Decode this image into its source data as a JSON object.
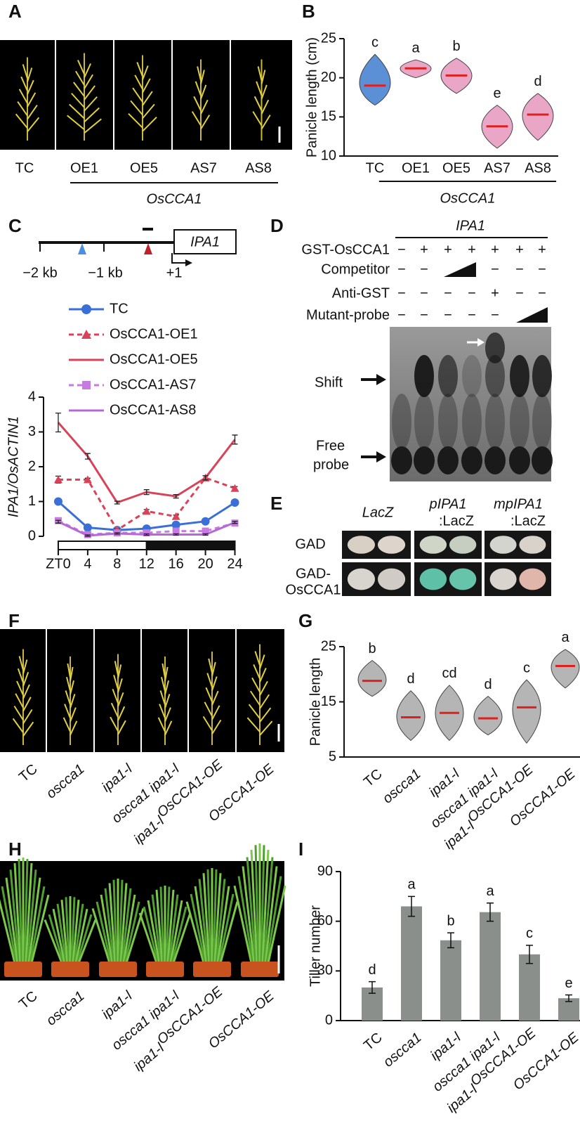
{
  "panel_labels": [
    "A",
    "B",
    "C",
    "D",
    "E",
    "F",
    "G",
    "H",
    "I"
  ],
  "panel_a": {
    "labels": [
      "TC",
      "OE1",
      "OE5",
      "AS7",
      "AS8"
    ],
    "group_label": "OsCCA1"
  },
  "panel_c_diagram": {
    "gene": "IPA1",
    "positions": [
      "−2 kb",
      "−1 kb",
      "+1"
    ]
  },
  "panel_d": {
    "probe": "IPA1",
    "rows": [
      {
        "label": "GST-OsCCA1",
        "cells": [
          "−",
          "+",
          "+",
          "+",
          "+",
          "+",
          "+"
        ]
      },
      {
        "label": "Competitor",
        "cells": [
          "−",
          "−",
          null,
          null,
          "−",
          "−",
          "−"
        ]
      },
      {
        "label": "Anti-GST",
        "cells": [
          "−",
          "−",
          "−",
          "−",
          "+",
          "−",
          "−"
        ]
      },
      {
        "label": "Mutant-probe",
        "cells": [
          "−",
          "−",
          "−",
          "−",
          "−",
          null,
          null
        ]
      }
    ],
    "shift": "Shift",
    "free_probe": [
      "Free",
      "probe"
    ]
  },
  "panel_e": {
    "columns": [
      [
        "LacZ"
      ],
      [
        "pIPA1",
        ":LacZ"
      ],
      [
        "mpIPA1",
        ":LacZ"
      ]
    ],
    "rows": [
      [
        "GAD"
      ],
      [
        "GAD-",
        "OsCCA1"
      ]
    ]
  },
  "panel_f": {
    "labels": [
      "TC",
      "oscca1",
      "ipa1-l",
      "oscca1 ipa1-l",
      "ipa1-l",
      "OsCCA1-OE"
    ],
    "superscripts": [
      null,
      null,
      null,
      null,
      "OsCCA1-OE",
      null
    ]
  },
  "panel_h": {
    "labels": [
      "TC",
      "oscca1",
      "ipa1-l",
      "oscca1 ipa1-l",
      "ipa1-l",
      "OsCCA1-OE"
    ],
    "superscripts": [
      null,
      null,
      null,
      null,
      "OsCCA1-OE",
      null
    ]
  },
  "chart_data": [
    {
      "type": "violin",
      "y_label": "Panicle length (cm)",
      "categories": [
        "TC",
        "OE1",
        "OE5",
        "AS7",
        "AS8"
      ],
      "values": [
        19,
        21.2,
        20.3,
        13.8,
        15.3
      ],
      "mins": [
        16.5,
        20,
        18,
        11,
        12
      ],
      "maxs": [
        23,
        22.3,
        22.5,
        16.5,
        18
      ],
      "colors": [
        "#5b8fd6",
        "#eaa6c6",
        "#eaa6c6",
        "#eaa6c6",
        "#eaa6c6"
      ],
      "annotations": [
        "c",
        "a",
        "b",
        "e",
        "d"
      ],
      "group_label": "OsCCA1",
      "ylim": [
        10,
        25
      ],
      "yticks": [
        10,
        15,
        20,
        25
      ]
    },
    {
      "type": "line",
      "y_label": "IPA1/OsACTIN1",
      "x": [
        0,
        4,
        8,
        12,
        16,
        20,
        24
      ],
      "xlim": [
        -2,
        25
      ],
      "xticks": [
        {
          "value": 0,
          "label": "ZT0"
        },
        4,
        8,
        12,
        16,
        20,
        24
      ],
      "ylim": [
        0,
        4
      ],
      "yticks": [
        0,
        1,
        2,
        3,
        4
      ],
      "series": [
        {
          "name": "TC",
          "color": "#3a6fd8",
          "marker": "circle",
          "dashed": false,
          "values": [
            1.0,
            0.25,
            0.18,
            0.22,
            0.33,
            0.43,
            0.97
          ],
          "errors": [
            0.04,
            0.03,
            0.02,
            0.03,
            0.03,
            0.03,
            0.04
          ]
        },
        {
          "name": "OsCCA1-OE1",
          "color": "#d9435a",
          "marker": "triangle",
          "dashed": true,
          "values": [
            1.63,
            1.63,
            0.18,
            0.72,
            0.57,
            1.68,
            1.38
          ],
          "errors": [
            0.1,
            0.04,
            0.03,
            0.05,
            0.04,
            0.06,
            0.05
          ]
        },
        {
          "name": "OsCCA1-OE5",
          "color": "#d9435a",
          "marker": null,
          "dashed": false,
          "values": [
            3.27,
            2.3,
            0.97,
            1.27,
            1.15,
            1.68,
            2.78
          ],
          "errors": [
            0.27,
            0.08,
            0.04,
            0.07,
            0.05,
            0.06,
            0.13
          ]
        },
        {
          "name": "OsCCA1-AS7",
          "color": "#c77ae0",
          "marker": "square",
          "dashed": true,
          "values": [
            0.45,
            0.05,
            0.1,
            0.1,
            0.15,
            0.15,
            0.38
          ],
          "errors": [
            0.05,
            0.03,
            0.02,
            0.02,
            0.02,
            0.02,
            0.04
          ]
        },
        {
          "name": "OsCCA1-AS8",
          "color": "#b668d6",
          "marker": null,
          "dashed": false,
          "values": [
            0.42,
            0.02,
            0.08,
            0.05,
            0.05,
            0.05,
            0.4
          ],
          "errors": [
            0.04,
            0.02,
            0.02,
            0.02,
            0.02,
            0.02,
            0.03
          ]
        }
      ]
    },
    {
      "type": "violin",
      "y_label": "Panicle length",
      "categories": [
        "TC",
        "oscca1",
        "ipa1-l",
        "oscca1 ipa1-l",
        "ipa1-l",
        "OsCCA1-OE"
      ],
      "category_superscripts": [
        null,
        null,
        null,
        null,
        "OsCCA1-OE",
        null
      ],
      "values": [
        18.8,
        12.2,
        13,
        12,
        14,
        21.5
      ],
      "mins": [
        16,
        8,
        8,
        9,
        7.5,
        17.5
      ],
      "maxs": [
        22.5,
        17,
        18,
        16,
        19,
        24.5
      ],
      "colors": [
        "#b5b5b5",
        "#b5b5b5",
        "#b5b5b5",
        "#b5b5b5",
        "#b5b5b5",
        "#b5b5b5"
      ],
      "annotations": [
        "b",
        "d",
        "cd",
        "d",
        "c",
        "a"
      ],
      "ylim": [
        5,
        25
      ],
      "yticks": [
        5,
        15,
        25
      ]
    },
    {
      "type": "bar",
      "y_label": "Tiller number",
      "categories": [
        "TC",
        "oscca1",
        "ipa1-l",
        "oscca1 ipa1-l",
        "ipa1-l",
        "OsCCA1-OE"
      ],
      "category_superscripts": [
        null,
        null,
        null,
        null,
        "OsCCA1-OE",
        null
      ],
      "values": [
        20,
        69,
        48.5,
        65.5,
        40,
        13.5
      ],
      "errors": [
        3.5,
        6,
        4.5,
        5.5,
        5.5,
        2
      ],
      "annotations": [
        "d",
        "a",
        "b",
        "a",
        "c",
        "e"
      ],
      "color": "#8a8f8c",
      "ylim": [
        0,
        90
      ],
      "yticks": [
        0,
        30,
        60,
        90
      ]
    }
  ]
}
